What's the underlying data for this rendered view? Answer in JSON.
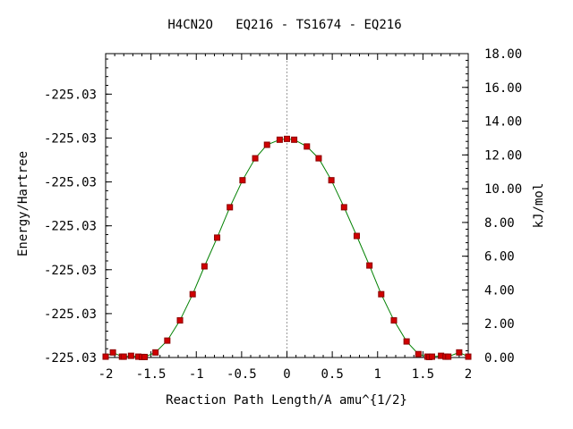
{
  "chart_data": {
    "type": "line",
    "title": "H4CN2O   EQ216 - TS1674 - EQ216",
    "xlabel": "Reaction Path Length/A amu^{1/2}",
    "ylabel": "Energy/Hartree",
    "y2label": "kJ/mol",
    "xlim": [
      -2,
      2
    ],
    "x_ticks": [
      -2,
      -1.5,
      -1,
      -0.5,
      0,
      0.5,
      1,
      1.5,
      2
    ],
    "x_tick_labels": [
      "-2",
      "-1.5",
      "-1",
      "-0.5",
      "0",
      "0.5",
      "1",
      "1.5",
      "2"
    ],
    "y2lim": [
      0,
      18
    ],
    "y_tick_values_kjmol": [
      0.0,
      2.6,
      5.2,
      7.8,
      10.4,
      13.0,
      15.6
    ],
    "y_tick_labels": [
      "-225.03",
      "-225.03",
      "-225.03",
      "-225.03",
      "-225.03",
      "-225.03",
      "-225.03"
    ],
    "y2_ticks": [
      0,
      2,
      4,
      6,
      8,
      10,
      12,
      14,
      16,
      18
    ],
    "y2_tick_labels": [
      "0.00",
      "2.00",
      "4.00",
      "6.00",
      "8.00",
      "10.00",
      "12.00",
      "14.00",
      "16.00",
      "18.00"
    ],
    "grid": false,
    "vertical_reference_x": 0,
    "line_color": "#008000",
    "marker_color": "#d00000",
    "marker_edge_color": "#8b0000",
    "series": [
      {
        "x": [
          -2.0,
          -1.92,
          -1.82,
          -1.8,
          -1.72,
          -1.64,
          -1.6,
          -1.57,
          -1.45,
          -1.32,
          -1.18,
          -1.04,
          -0.91,
          -0.77,
          -0.63,
          -0.49,
          -0.35,
          -0.22,
          -0.08,
          0.0,
          0.08,
          0.22,
          0.35,
          0.49,
          0.63,
          0.77,
          0.91,
          1.04,
          1.18,
          1.32,
          1.45,
          1.55,
          1.57,
          1.6,
          1.7,
          1.75,
          1.78,
          1.9,
          2.0
        ],
        "y": [
          0.05,
          0.3,
          0.05,
          0.05,
          0.1,
          0.05,
          0.03,
          0.03,
          0.3,
          1.0,
          2.2,
          3.75,
          5.4,
          7.1,
          8.9,
          10.5,
          11.8,
          12.6,
          12.9,
          12.95,
          12.9,
          12.5,
          11.8,
          10.5,
          8.9,
          7.2,
          5.45,
          3.75,
          2.2,
          0.95,
          0.2,
          0.05,
          0.03,
          0.05,
          0.1,
          0.05,
          0.05,
          0.3,
          0.05
        ]
      }
    ]
  }
}
